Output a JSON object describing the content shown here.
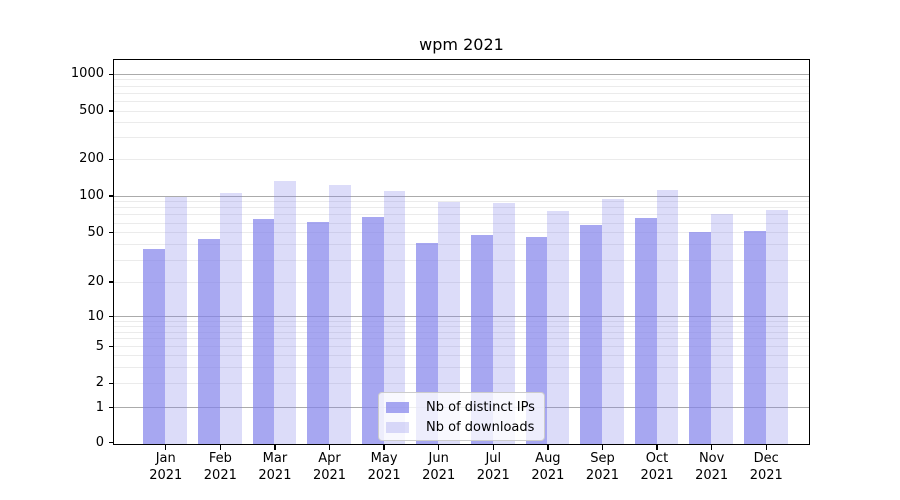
{
  "chart_data": {
    "type": "bar",
    "title": "wpm 2021",
    "categories": [
      "Jan 2021",
      "Feb 2021",
      "Mar 2021",
      "Apr 2021",
      "May 2021",
      "Jun 2021",
      "Jul 2021",
      "Aug 2021",
      "Sep 2021",
      "Oct 2021",
      "Nov 2021",
      "Dec 2021"
    ],
    "series": [
      {
        "name": "Nb of distinct IPs",
        "color": "rgba(130,130,235,0.70)",
        "values": [
          37,
          45,
          66,
          62,
          68,
          42,
          48,
          47,
          58,
          67,
          51,
          52
        ]
      },
      {
        "name": "Nb of downloads",
        "color": "rgba(130,130,235,0.28)",
        "values": [
          100,
          106,
          135,
          124,
          112,
          90,
          88,
          76,
          96,
          114,
          72,
          78
        ]
      }
    ],
    "y_ticks": [
      0,
      1,
      2,
      5,
      10,
      20,
      50,
      100,
      200,
      500,
      1000
    ],
    "y_major_gridlines": [
      1,
      10,
      100,
      1000
    ],
    "yscale": "symlog",
    "ylim": [
      0,
      1330
    ],
    "grid": "both",
    "legend_position": "lower center",
    "colors": {
      "major_grid": "#ababab",
      "minor_grid": "#ebebeb",
      "spine": "#000000"
    }
  }
}
